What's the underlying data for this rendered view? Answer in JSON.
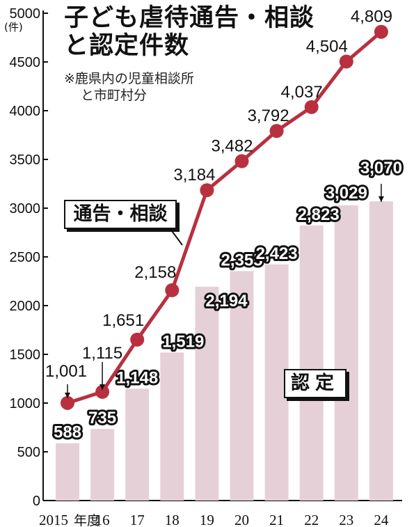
{
  "title": {
    "line1": "子ども虐待通告・相談",
    "line2": "と認定件数"
  },
  "note": {
    "line1": "※鹿県内の児童相談所",
    "line2": "と市町村分"
  },
  "unit_label": "(件)",
  "year_suffix": "年度",
  "colors": {
    "line": "#b8303f",
    "bar": "#e6d0d8",
    "axis": "#111111"
  },
  "chart_data": {
    "type": "bar+line",
    "categories": [
      "2015",
      "16",
      "17",
      "18",
      "19",
      "20",
      "21",
      "22",
      "23",
      "24"
    ],
    "ylim": [
      0,
      5000
    ],
    "yticks": [
      0,
      500,
      1000,
      1500,
      2000,
      2500,
      3000,
      3500,
      4000,
      4500,
      5000
    ],
    "grid": false,
    "series": [
      {
        "name": "通告・相談",
        "kind": "line",
        "values": [
          1001,
          1115,
          1651,
          2158,
          3184,
          3482,
          3792,
          4037,
          4504,
          4809
        ],
        "labels": [
          "1,001",
          "1,115",
          "1,651",
          "2,158",
          "3,184",
          "3,482",
          "3,792",
          "4,037",
          "4,504",
          "4,809"
        ]
      },
      {
        "name": "認定",
        "kind": "bar",
        "values": [
          588,
          735,
          1148,
          1519,
          2194,
          2355,
          2423,
          2823,
          3029,
          3070
        ],
        "labels": [
          "588",
          "735",
          "1,148",
          "1,519",
          "2,194",
          "2,355",
          "2,423",
          "2,823",
          "3,029",
          "3,070"
        ]
      }
    ]
  }
}
